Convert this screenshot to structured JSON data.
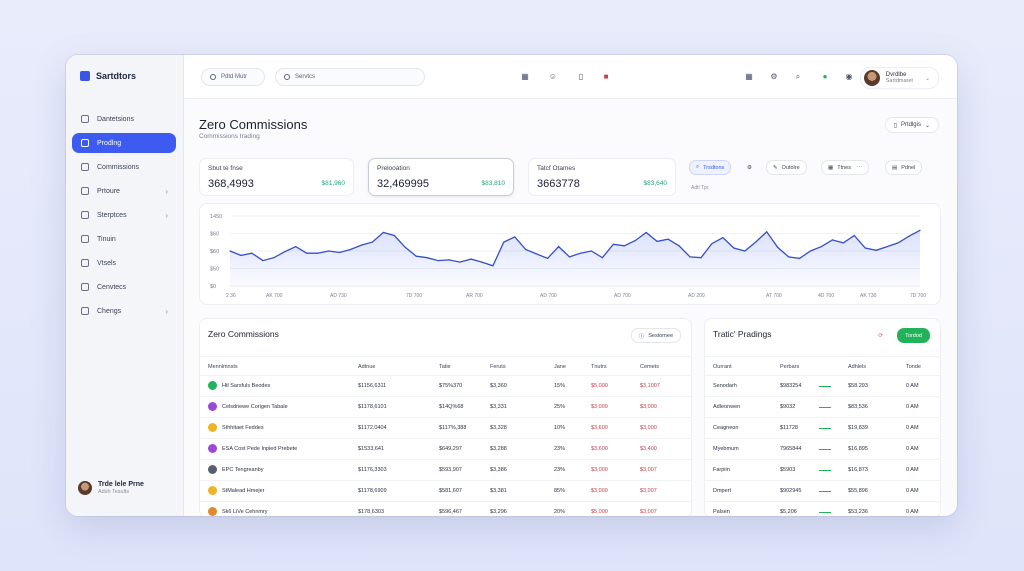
{
  "app": {
    "name": "Sartdtors"
  },
  "topbar": {
    "pill1_label": "Pdtd Mutr",
    "search_placeholder": "Servtcs",
    "profile_name": "Dvrdlbe",
    "profile_sub": "Sartdmaret"
  },
  "sidebar": {
    "items": [
      {
        "label": "Dantetsions",
        "active": false,
        "chevron": false
      },
      {
        "label": "Prodlng",
        "active": true,
        "chevron": false
      },
      {
        "label": "Commissions",
        "active": false,
        "chevron": false
      },
      {
        "label": "Prtoure",
        "active": false,
        "chevron": true
      },
      {
        "label": "Sterptces",
        "active": false,
        "chevron": true
      },
      {
        "label": "Tinuin",
        "active": false,
        "chevron": false
      },
      {
        "label": "Vtsels",
        "active": false,
        "chevron": false
      },
      {
        "label": "Cenvtecs",
        "active": false,
        "chevron": false
      },
      {
        "label": "Chengs",
        "active": false,
        "chevron": true
      }
    ],
    "user_name": "Trde lele Prne",
    "user_role": "Adsh Tesults"
  },
  "header": {
    "title": "Zero Commissions",
    "subtitle": "Commissions trading",
    "pricing_label": "Prtdlgis"
  },
  "stats": [
    {
      "label": "Sbut te fnse",
      "value": "368,4993",
      "delta": "$81,960"
    },
    {
      "label": "Prelooation",
      "value": "32,469995",
      "delta": "$83,810"
    },
    {
      "label": "Tatcf Otames",
      "value": "3663778",
      "delta": "$83,640"
    }
  ],
  "filters": {
    "b1": "Trsdtons",
    "b2": "Outolre",
    "b3": "Ttnes",
    "b4": "Pdnel",
    "note": "Adtl Tpr"
  },
  "chart_data": {
    "type": "line",
    "y_ticks": [
      "1450",
      "$60",
      "$60",
      "$50",
      "$0"
    ],
    "x_ticks": [
      "2 36",
      "AK 700",
      "AD 730",
      "7D 700",
      "AR 700",
      "AD 700",
      "AD 700",
      "AD 200",
      "AT 700",
      "4D 700",
      "AK 730",
      "7D 700"
    ],
    "values": [
      50,
      44,
      47,
      37,
      41,
      49,
      56,
      47,
      47,
      50,
      48,
      52,
      58,
      62,
      75,
      71,
      55,
      43,
      41,
      37,
      38,
      35,
      39,
      35,
      30,
      62,
      69,
      52,
      46,
      40,
      56,
      42,
      47,
      50,
      41,
      59,
      57,
      64,
      75,
      63,
      66,
      57,
      42,
      41,
      60,
      68,
      54,
      50,
      62,
      76,
      55,
      42,
      40,
      50,
      56,
      65,
      61,
      71,
      54,
      51,
      56,
      61,
      70,
      78
    ]
  },
  "table1": {
    "title": "Zero Commissions",
    "button": "Sestomee",
    "headers": [
      "Mennlmnsts",
      "Adtnue",
      "Tatie",
      "Feruts",
      "Jane",
      "Tnutrs",
      "Cemets"
    ],
    "rows": [
      {
        "color": "#22b35a",
        "name": "Htl Sarsfuls Beodes",
        "c1": "$1156,6311",
        "c2": "$75%370",
        "c3": "$3,360",
        "c4": "15%",
        "c5": "$5,000",
        "c6": "$3,1007"
      },
      {
        "color": "#9b4ad8",
        "name": "Celsdriewe Corigen Tabale",
        "c1": "$1178,6101",
        "c2": "$14Q%68",
        "c3": "$3,331",
        "c4": "25%",
        "c5": "$3,000",
        "c6": "$3,000"
      },
      {
        "color": "#f0b323",
        "name": "Sthhitaet Feddes",
        "c1": "$1172,0404",
        "c2": "$117%,388",
        "c3": "$3,328",
        "c4": "10%",
        "c5": "$3,600",
        "c6": "$3,000"
      },
      {
        "color": "#9b4ad8",
        "name": "ESA Cost Pede Inpied Prebete",
        "c1": "$1533,641",
        "c2": "$649,297",
        "c3": "$3,288",
        "c4": "23%",
        "c5": "$3,600",
        "c6": "$3,400"
      },
      {
        "color": "#556070",
        "name": "EPC Tengreanby",
        "c1": "$1176,3303",
        "c2": "$593,907",
        "c3": "$3,386",
        "c4": "23%",
        "c5": "$3,000",
        "c6": "$3,007"
      },
      {
        "color": "#f0b323",
        "name": "StMalead Hmejer",
        "c1": "$1178,6909",
        "c2": "$581,607",
        "c3": "$3,381",
        "c4": "85%",
        "c5": "$3,000",
        "c6": "$3,007"
      },
      {
        "color": "#e08a2b",
        "name": "Sk6 LiVe Cehnmry",
        "c1": "$178,6303",
        "c2": "$596,467",
        "c3": "$3,296",
        "c4": "20%",
        "c5": "$5,000",
        "c6": "$3,007"
      }
    ]
  },
  "table2": {
    "title": "Tratic' Pradings",
    "button": "Tordod",
    "headers": [
      "Ourrant",
      "Perbars",
      "Adhlels",
      "Tonde"
    ],
    "rows": [
      {
        "name": "Senodarh",
        "c1": "$983254",
        "c2": "$58.293",
        "c3": "0 AM"
      },
      {
        "name": "Adleonwen",
        "c1": "$9032",
        "c2": "$83,536",
        "c3": "0 AM"
      },
      {
        "name": "Ceagneon",
        "c1": "$11728",
        "c2": "$19,839",
        "c3": "0 AM"
      },
      {
        "name": "Myebmum",
        "c1": "7965844",
        "c2": "$16,895",
        "c3": "0 AM"
      },
      {
        "name": "Farpiin",
        "c1": "$5903",
        "c2": "$16,873",
        "c3": "0 AM"
      },
      {
        "name": "Dmpert",
        "c1": "$902945",
        "c2": "$55,896",
        "c3": "0 AM"
      },
      {
        "name": "Palsen",
        "c1": "$5,206",
        "c2": "$53,236",
        "c3": "0 AM"
      }
    ]
  }
}
